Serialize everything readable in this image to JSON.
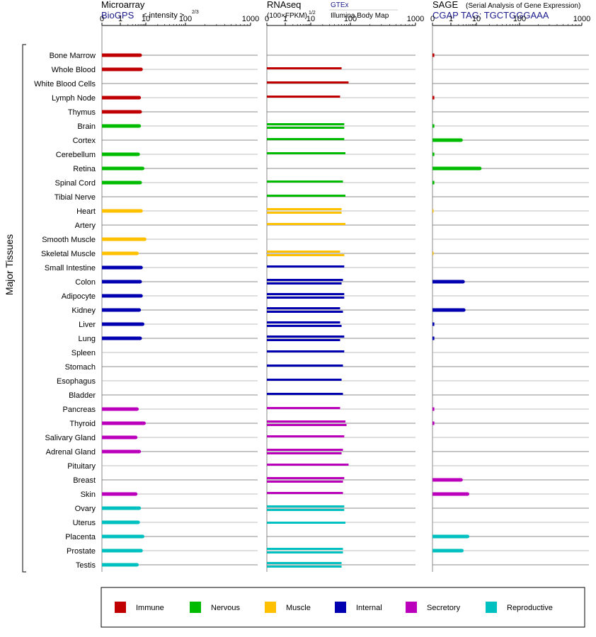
{
  "colors": {
    "Immune": "#c00000",
    "Nervous": "#00bb00",
    "Muscle": "#ffc000",
    "Internal": "#0000b0",
    "Secretory": "#bb00bb",
    "Reproductive": "#00c0c0"
  },
  "group_label": "Major Tissues",
  "panels": [
    {
      "id": "microarray",
      "title": "Microarray",
      "subtitle": "BioGPS",
      "unit_text": "< intensity >",
      "unit_sup": "2/3",
      "ticks": [
        "0",
        "1",
        "10",
        "100",
        "1000"
      ]
    },
    {
      "id": "rnaseq",
      "title": "RNAseq",
      "subtitle": "(100×FPKM)",
      "unit_sup": "1/2",
      "legend_top": "GTEx",
      "legend_bottom": "Illumina Body Map",
      "ticks": [
        "0",
        "1",
        "10",
        "100",
        "1000"
      ]
    },
    {
      "id": "sage",
      "title": "SAGE",
      "title_note": "(Serial Analysis of Gene Expression)",
      "subtitle": "CGAP TAG: TGCTGGGAAA",
      "ticks": [
        "0",
        "1",
        "10",
        "100",
        "1000"
      ]
    }
  ],
  "legend": [
    "Immune",
    "Nervous",
    "Muscle",
    "Internal",
    "Secretory",
    "Reproductive"
  ],
  "chart_data": {
    "type": "bar",
    "orientation": "horizontal",
    "x_scale": "log (0, 1, 10, 100, 1000)",
    "xlim": [
      0,
      1000
    ],
    "categories": [
      "Bone Marrow",
      "Whole Blood",
      "White Blood Cells",
      "Lymph Node",
      "Thymus",
      "Brain",
      "Cortex",
      "Cerebellum",
      "Retina",
      "Spinal Cord",
      "Tibial Nerve",
      "Heart",
      "Artery",
      "Smooth Muscle",
      "Skeletal Muscle",
      "Small Intestine",
      "Colon",
      "Adipocyte",
      "Kidney",
      "Liver",
      "Lung",
      "Spleen",
      "Stomach",
      "Esophagus",
      "Bladder",
      "Pancreas",
      "Thyroid",
      "Salivary Gland",
      "Adrenal Gland",
      "Pituitary",
      "Breast",
      "Skin",
      "Ovary",
      "Uterus",
      "Placenta",
      "Prostate",
      "Testis"
    ],
    "system": [
      "Immune",
      "Immune",
      "Immune",
      "Immune",
      "Immune",
      "Nervous",
      "Nervous",
      "Nervous",
      "Nervous",
      "Nervous",
      "Nervous",
      "Muscle",
      "Muscle",
      "Muscle",
      "Muscle",
      "Internal",
      "Internal",
      "Internal",
      "Internal",
      "Internal",
      "Internal",
      "Internal",
      "Internal",
      "Internal",
      "Internal",
      "Secretory",
      "Secretory",
      "Secretory",
      "Secretory",
      "Secretory",
      "Secretory",
      "Secretory",
      "Reproductive",
      "Reproductive",
      "Reproductive",
      "Reproductive",
      "Reproductive"
    ],
    "series": [
      {
        "name": "Microarray",
        "values": [
          6,
          6.5,
          null,
          5.5,
          6,
          5.5,
          null,
          5,
          7.5,
          6,
          null,
          6.5,
          null,
          9,
          4.5,
          6.5,
          6,
          6.5,
          5.5,
          7.5,
          6,
          null,
          null,
          null,
          null,
          4.5,
          8.5,
          4,
          5.5,
          null,
          null,
          4,
          5.5,
          5,
          7.5,
          6.5,
          4.5
        ]
      },
      {
        "name": "GTEx",
        "values": [
          null,
          60,
          null,
          null,
          null,
          70,
          70,
          null,
          null,
          null,
          null,
          60,
          null,
          null,
          null,
          null,
          null,
          null,
          null,
          null,
          null,
          null,
          null,
          null,
          null,
          null,
          null,
          null,
          null,
          null,
          null,
          null,
          null,
          null,
          null,
          70,
          null
        ]
      },
      {
        "name": "Illumina Body Map",
        "values": [
          null,
          null,
          90,
          55,
          null,
          70,
          null,
          75,
          null,
          65,
          75,
          60,
          75,
          null,
          null,
          null,
          null,
          null,
          null,
          null,
          null,
          null,
          null,
          null,
          null,
          null,
          null,
          null,
          null,
          null,
          null,
          null,
          null,
          null,
          null,
          null,
          null
        ]
      },
      {
        "name": "RNAseq GTEx",
        "values": [
          null,
          60,
          90,
          55,
          null,
          70,
          70,
          75,
          null,
          65,
          75,
          60,
          75,
          null,
          55,
          70,
          65,
          70,
          55,
          55,
          70,
          70,
          65,
          60,
          65,
          55,
          75,
          70,
          65,
          90,
          70,
          65,
          70,
          null,
          null,
          65,
          60
        ]
      },
      {
        "name": "RNAseq Illumina Body Map",
        "values": [
          null,
          null,
          null,
          null,
          null,
          70,
          null,
          null,
          null,
          null,
          null,
          60,
          null,
          null,
          70,
          null,
          60,
          70,
          65,
          60,
          55,
          null,
          null,
          null,
          null,
          null,
          80,
          null,
          60,
          null,
          65,
          null,
          70,
          75,
          null,
          65,
          60
        ]
      },
      {
        "name": "SAGE",
        "values": [
          0.1,
          null,
          null,
          0.1,
          null,
          0.1,
          2.5,
          0.1,
          12,
          0.1,
          null,
          0.05,
          null,
          null,
          0.05,
          null,
          3,
          null,
          3.2,
          0.1,
          0.1,
          null,
          null,
          null,
          null,
          0.1,
          0.1,
          null,
          null,
          null,
          2.5,
          4.5,
          null,
          null,
          4.5,
          2.7,
          null
        ]
      }
    ]
  }
}
